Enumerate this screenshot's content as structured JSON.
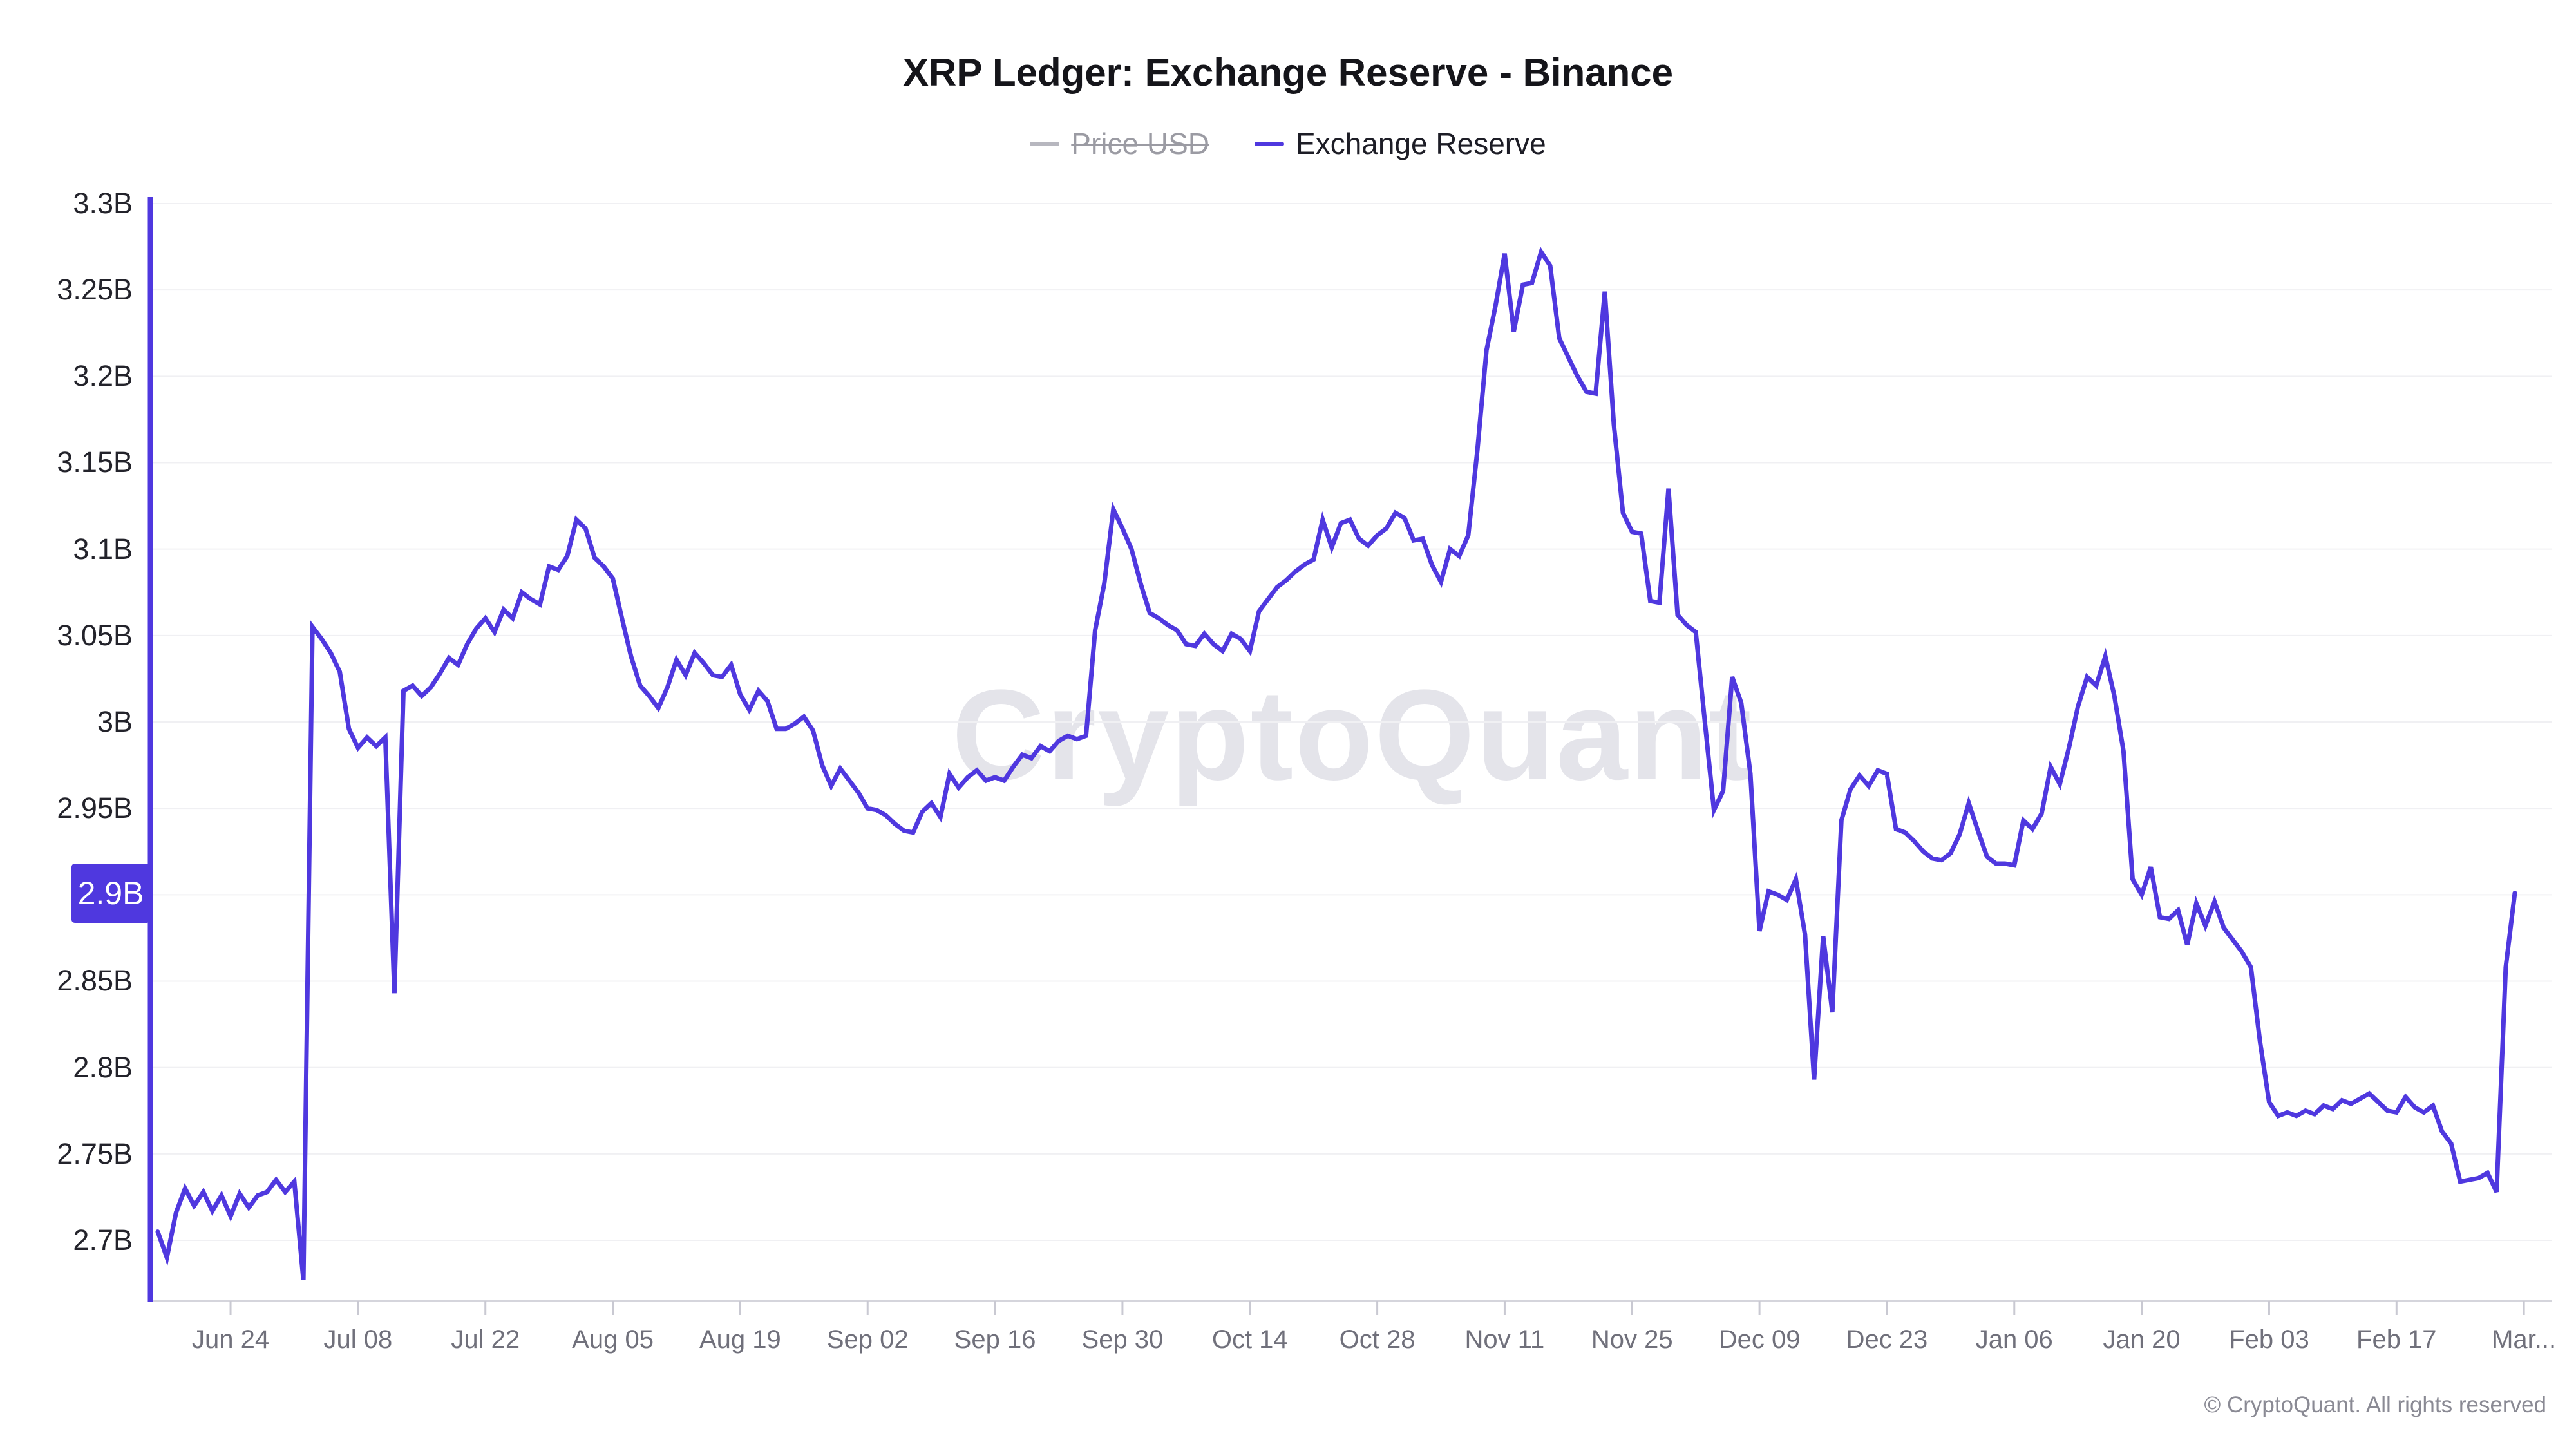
{
  "title": "XRP Ledger: Exchange Reserve - Binance",
  "legend": {
    "items": [
      {
        "label": "Price USD",
        "enabled": false
      },
      {
        "label": "Exchange Reserve",
        "enabled": true
      }
    ]
  },
  "watermark": "CryptoQuant",
  "copyright": "© CryptoQuant. All rights reserved",
  "badge": {
    "text": "2.9B"
  },
  "colors": {
    "series": "#4f38df",
    "badge_bg": "#4f38df",
    "badge_text": "#ffffff",
    "grid": "#f0f0f3",
    "axis_line": "#d5d5dc",
    "tick": "#c9c9d2",
    "y_label": "#23232b",
    "x_label": "#70707b",
    "title": "#15151a",
    "legend_disabled": "#9b9ba3",
    "legend_disabled_dash": "#b7b7bf",
    "watermark": "#e4e4ea",
    "copyright": "#8a8a94"
  },
  "chart_data": {
    "type": "line",
    "title": "XRP Ledger: Exchange Reserve - Binance",
    "xlabel": "",
    "ylabel": "",
    "grid": "horizontal",
    "legend_position": "top",
    "ylim": [
      2.665,
      3.305
    ],
    "y_axis": {
      "tick_labels": [
        "3.3B",
        "3.25B",
        "3.2B",
        "3.15B",
        "3.1B",
        "3.05B",
        "3B",
        "2.95B",
        "2.9B",
        "2.85B",
        "2.8B",
        "2.75B",
        "2.7B"
      ],
      "tick_values": [
        3.3,
        3.25,
        3.2,
        3.15,
        3.1,
        3.05,
        3.0,
        2.95,
        2.9,
        2.85,
        2.8,
        2.75,
        2.7
      ]
    },
    "x_axis": {
      "tick_labels": [
        "Jun 24",
        "Jul 08",
        "Jul 22",
        "Aug 05",
        "Aug 19",
        "Sep 02",
        "Sep 16",
        "Sep 30",
        "Oct 14",
        "Oct 28",
        "Nov 11",
        "Nov 25",
        "Dec 09",
        "Dec 23",
        "Jan 06",
        "Jan 20",
        "Feb 03",
        "Feb 17",
        "Mar..."
      ]
    },
    "last_value_label": "2.9B",
    "series": [
      {
        "name": "Exchange Reserve",
        "unit": "B",
        "points": [
          [
            "Jun 16",
            2.705
          ],
          [
            "Jun 17",
            2.69
          ],
          [
            "Jun 18",
            2.716
          ],
          [
            "Jun 19",
            2.73
          ],
          [
            "Jun 20",
            2.72
          ],
          [
            "Jun 21",
            2.728
          ],
          [
            "Jun 22",
            2.717
          ],
          [
            "Jun 23",
            2.726
          ],
          [
            "Jun 24",
            2.714
          ],
          [
            "Jun 25",
            2.727
          ],
          [
            "Jun 26",
            2.719
          ],
          [
            "Jun 27",
            2.726
          ],
          [
            "Jun 28",
            2.728
          ],
          [
            "Jun 29",
            2.735
          ],
          [
            "Jun 30",
            2.728
          ],
          [
            "Jul 01",
            2.734
          ],
          [
            "Jul 02",
            2.677
          ],
          [
            "Jul 03",
            3.055
          ],
          [
            "Jul 04",
            3.048
          ],
          [
            "Jul 05",
            3.04
          ],
          [
            "Jul 06",
            3.029
          ],
          [
            "Jul 07",
            2.996
          ],
          [
            "Jul 08",
            2.985
          ],
          [
            "Jul 09",
            2.991
          ],
          [
            "Jul 10",
            2.986
          ],
          [
            "Jul 11",
            2.991
          ],
          [
            "Jul 12",
            2.843
          ],
          [
            "Jul 13",
            3.018
          ],
          [
            "Jul 14",
            3.021
          ],
          [
            "Jul 15",
            3.015
          ],
          [
            "Jul 16",
            3.02
          ],
          [
            "Jul 17",
            3.028
          ],
          [
            "Jul 18",
            3.037
          ],
          [
            "Jul 19",
            3.033
          ],
          [
            "Jul 20",
            3.045
          ],
          [
            "Jul 21",
            3.054
          ],
          [
            "Jul 22",
            3.06
          ],
          [
            "Jul 23",
            3.052
          ],
          [
            "Jul 24",
            3.065
          ],
          [
            "Jul 25",
            3.06
          ],
          [
            "Jul 26",
            3.075
          ],
          [
            "Jul 27",
            3.071
          ],
          [
            "Jul 28",
            3.068
          ],
          [
            "Jul 29",
            3.09
          ],
          [
            "Jul 30",
            3.088
          ],
          [
            "Jul 31",
            3.096
          ],
          [
            "Aug 01",
            3.117
          ],
          [
            "Aug 02",
            3.112
          ],
          [
            "Aug 03",
            3.095
          ],
          [
            "Aug 04",
            3.09
          ],
          [
            "Aug 05",
            3.083
          ],
          [
            "Aug 06",
            3.06
          ],
          [
            "Aug 07",
            3.038
          ],
          [
            "Aug 08",
            3.021
          ],
          [
            "Aug 09",
            3.015
          ],
          [
            "Aug 10",
            3.008
          ],
          [
            "Aug 11",
            3.02
          ],
          [
            "Aug 12",
            3.036
          ],
          [
            "Aug 13",
            3.027
          ],
          [
            "Aug 14",
            3.04
          ],
          [
            "Aug 15",
            3.034
          ],
          [
            "Aug 16",
            3.027
          ],
          [
            "Aug 17",
            3.026
          ],
          [
            "Aug 18",
            3.033
          ],
          [
            "Aug 19",
            3.016
          ],
          [
            "Aug 20",
            3.007
          ],
          [
            "Aug 21",
            3.018
          ],
          [
            "Aug 22",
            3.012
          ],
          [
            "Aug 23",
            2.996
          ],
          [
            "Aug 24",
            2.996
          ],
          [
            "Aug 25",
            2.999
          ],
          [
            "Aug 26",
            3.003
          ],
          [
            "Aug 27",
            2.995
          ],
          [
            "Aug 28",
            2.975
          ],
          [
            "Aug 29",
            2.963
          ],
          [
            "Aug 30",
            2.973
          ],
          [
            "Aug 31",
            2.966
          ],
          [
            "Sep 01",
            2.959
          ],
          [
            "Sep 02",
            2.95
          ],
          [
            "Sep 03",
            2.949
          ],
          [
            "Sep 04",
            2.946
          ],
          [
            "Sep 05",
            2.941
          ],
          [
            "Sep 06",
            2.937
          ],
          [
            "Sep 07",
            2.936
          ],
          [
            "Sep 08",
            2.948
          ],
          [
            "Sep 09",
            2.953
          ],
          [
            "Sep 10",
            2.945
          ],
          [
            "Sep 11",
            2.97
          ],
          [
            "Sep 12",
            2.962
          ],
          [
            "Sep 13",
            2.968
          ],
          [
            "Sep 14",
            2.972
          ],
          [
            "Sep 15",
            2.966
          ],
          [
            "Sep 16",
            2.968
          ],
          [
            "Sep 17",
            2.966
          ],
          [
            "Sep 18",
            2.974
          ],
          [
            "Sep 19",
            2.981
          ],
          [
            "Sep 20",
            2.979
          ],
          [
            "Sep 21",
            2.986
          ],
          [
            "Sep 22",
            2.983
          ],
          [
            "Sep 23",
            2.989
          ],
          [
            "Sep 24",
            2.992
          ],
          [
            "Sep 25",
            2.99
          ],
          [
            "Sep 26",
            2.992
          ],
          [
            "Sep 27",
            3.053
          ],
          [
            "Sep 28",
            3.08
          ],
          [
            "Sep 29",
            3.123
          ],
          [
            "Sep 30",
            3.112
          ],
          [
            "Oct 01",
            3.1
          ],
          [
            "Oct 02",
            3.08
          ],
          [
            "Oct 03",
            3.063
          ],
          [
            "Oct 04",
            3.06
          ],
          [
            "Oct 05",
            3.056
          ],
          [
            "Oct 06",
            3.053
          ],
          [
            "Oct 07",
            3.045
          ],
          [
            "Oct 08",
            3.044
          ],
          [
            "Oct 09",
            3.051
          ],
          [
            "Oct 10",
            3.045
          ],
          [
            "Oct 11",
            3.041
          ],
          [
            "Oct 12",
            3.051
          ],
          [
            "Oct 13",
            3.048
          ],
          [
            "Oct 14",
            3.041
          ],
          [
            "Oct 15",
            3.064
          ],
          [
            "Oct 16",
            3.071
          ],
          [
            "Oct 17",
            3.078
          ],
          [
            "Oct 18",
            3.082
          ],
          [
            "Oct 19",
            3.087
          ],
          [
            "Oct 20",
            3.091
          ],
          [
            "Oct 21",
            3.094
          ],
          [
            "Oct 22",
            3.117
          ],
          [
            "Oct 23",
            3.101
          ],
          [
            "Oct 24",
            3.115
          ],
          [
            "Oct 25",
            3.117
          ],
          [
            "Oct 26",
            3.106
          ],
          [
            "Oct 27",
            3.102
          ],
          [
            "Oct 28",
            3.108
          ],
          [
            "Oct 29",
            3.112
          ],
          [
            "Oct 30",
            3.121
          ],
          [
            "Oct 31",
            3.118
          ],
          [
            "Nov 01",
            3.105
          ],
          [
            "Nov 02",
            3.106
          ],
          [
            "Nov 03",
            3.091
          ],
          [
            "Nov 04",
            3.081
          ],
          [
            "Nov 05",
            3.1
          ],
          [
            "Nov 06",
            3.096
          ],
          [
            "Nov 07",
            3.108
          ],
          [
            "Nov 08",
            3.157
          ],
          [
            "Nov 09",
            3.215
          ],
          [
            "Nov 10",
            3.241
          ],
          [
            "Nov 11",
            3.271
          ],
          [
            "Nov 12",
            3.226
          ],
          [
            "Nov 13",
            3.253
          ],
          [
            "Nov 14",
            3.254
          ],
          [
            "Nov 15",
            3.272
          ],
          [
            "Nov 16",
            3.264
          ],
          [
            "Nov 17",
            3.222
          ],
          [
            "Nov 18",
            3.211
          ],
          [
            "Nov 19",
            3.2
          ],
          [
            "Nov 20",
            3.191
          ],
          [
            "Nov 21",
            3.19
          ],
          [
            "Nov 22",
            3.249
          ],
          [
            "Nov 23",
            3.172
          ],
          [
            "Nov 24",
            3.121
          ],
          [
            "Nov 25",
            3.11
          ],
          [
            "Nov 26",
            3.109
          ],
          [
            "Nov 27",
            3.07
          ],
          [
            "Nov 28",
            3.069
          ],
          [
            "Nov 29",
            3.135
          ],
          [
            "Nov 30",
            3.062
          ],
          [
            "Dec 01",
            3.056
          ],
          [
            "Dec 02",
            3.052
          ],
          [
            "Dec 03",
            3.0
          ],
          [
            "Dec 04",
            2.949
          ],
          [
            "Dec 05",
            2.96
          ],
          [
            "Dec 06",
            3.026
          ],
          [
            "Dec 07",
            3.011
          ],
          [
            "Dec 08",
            2.97
          ],
          [
            "Dec 09",
            2.879
          ],
          [
            "Dec 10",
            2.902
          ],
          [
            "Dec 11",
            2.9
          ],
          [
            "Dec 12",
            2.897
          ],
          [
            "Dec 13",
            2.909
          ],
          [
            "Dec 14",
            2.877
          ],
          [
            "Dec 15",
            2.793
          ],
          [
            "Dec 16",
            2.876
          ],
          [
            "Dec 17",
            2.832
          ],
          [
            "Dec 18",
            2.943
          ],
          [
            "Dec 19",
            2.961
          ],
          [
            "Dec 20",
            2.969
          ],
          [
            "Dec 21",
            2.963
          ],
          [
            "Dec 22",
            2.972
          ],
          [
            "Dec 23",
            2.97
          ],
          [
            "Dec 24",
            2.938
          ],
          [
            "Dec 25",
            2.936
          ],
          [
            "Dec 26",
            2.931
          ],
          [
            "Dec 27",
            2.925
          ],
          [
            "Dec 28",
            2.921
          ],
          [
            "Dec 29",
            2.92
          ],
          [
            "Dec 30",
            2.924
          ],
          [
            "Dec 31",
            2.935
          ],
          [
            "Jan 01",
            2.953
          ],
          [
            "Jan 02",
            2.937
          ],
          [
            "Jan 03",
            2.922
          ],
          [
            "Jan 04",
            2.918
          ],
          [
            "Jan 05",
            2.918
          ],
          [
            "Jan 06",
            2.917
          ],
          [
            "Jan 07",
            2.943
          ],
          [
            "Jan 08",
            2.938
          ],
          [
            "Jan 09",
            2.947
          ],
          [
            "Jan 10",
            2.974
          ],
          [
            "Jan 11",
            2.964
          ],
          [
            "Jan 12",
            2.985
          ],
          [
            "Jan 13",
            3.009
          ],
          [
            "Jan 14",
            3.026
          ],
          [
            "Jan 15",
            3.021
          ],
          [
            "Jan 16",
            3.038
          ],
          [
            "Jan 17",
            3.015
          ],
          [
            "Jan 18",
            2.983
          ],
          [
            "Jan 19",
            2.909
          ],
          [
            "Jan 20",
            2.9
          ],
          [
            "Jan 21",
            2.916
          ],
          [
            "Jan 22",
            2.887
          ],
          [
            "Jan 23",
            2.886
          ],
          [
            "Jan 24",
            2.891
          ],
          [
            "Jan 25",
            2.871
          ],
          [
            "Jan 26",
            2.895
          ],
          [
            "Jan 27",
            2.882
          ],
          [
            "Jan 28",
            2.896
          ],
          [
            "Jan 29",
            2.881
          ],
          [
            "Jan 30",
            2.874
          ],
          [
            "Jan 31",
            2.867
          ],
          [
            "Feb 01",
            2.858
          ],
          [
            "Feb 02",
            2.815
          ],
          [
            "Feb 03",
            2.78
          ],
          [
            "Feb 04",
            2.772
          ],
          [
            "Feb 05",
            2.774
          ],
          [
            "Feb 06",
            2.772
          ],
          [
            "Feb 07",
            2.775
          ],
          [
            "Feb 08",
            2.773
          ],
          [
            "Feb 09",
            2.778
          ],
          [
            "Feb 10",
            2.776
          ],
          [
            "Feb 11",
            2.781
          ],
          [
            "Feb 12",
            2.779
          ],
          [
            "Feb 13",
            2.782
          ],
          [
            "Feb 14",
            2.785
          ],
          [
            "Feb 15",
            2.78
          ],
          [
            "Feb 16",
            2.775
          ],
          [
            "Feb 17",
            2.774
          ],
          [
            "Feb 18",
            2.783
          ],
          [
            "Feb 19",
            2.777
          ],
          [
            "Feb 20",
            2.774
          ],
          [
            "Feb 21",
            2.778
          ],
          [
            "Feb 22",
            2.763
          ],
          [
            "Feb 23",
            2.756
          ],
          [
            "Feb 24",
            2.734
          ],
          [
            "Feb 25",
            2.735
          ],
          [
            "Feb 26",
            2.736
          ],
          [
            "Feb 27",
            2.739
          ],
          [
            "Feb 28",
            2.728
          ],
          [
            "Mar 01",
            2.858
          ],
          [
            "Mar 02",
            2.901
          ]
        ]
      }
    ]
  }
}
